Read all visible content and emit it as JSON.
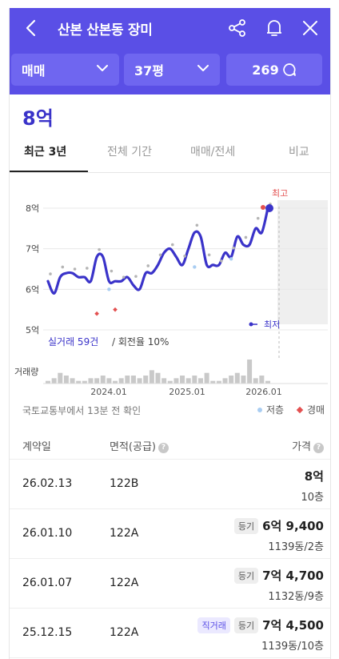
{
  "header": {
    "title": "산본 산본동 장미",
    "filter_trade": "매매",
    "filter_size": "37평",
    "comment_count": "269",
    "bg_color": "#5a4fe6"
  },
  "summary": {
    "price": "8억"
  },
  "tabs": [
    {
      "label": "최근 3년",
      "active": true
    },
    {
      "label": "전체 기간",
      "active": false
    },
    {
      "label": "매매/전세",
      "active": false
    },
    {
      "label": "비교",
      "active": false
    }
  ],
  "chart_data": {
    "type": "line",
    "y_ticks": [
      "8억",
      "7억",
      "6억",
      "5억"
    ],
    "x_ticks": [
      "2024.01",
      "2025.01",
      "2026.01"
    ],
    "ylim": [
      5,
      8
    ],
    "max_label": "최고",
    "min_label": "최저",
    "info_count": "실거래 59건",
    "info_rate": "/ 회전율 10%",
    "volume_label": "거래량",
    "series": [
      {
        "values": [
          6.2,
          5.9,
          6.3,
          6.4,
          6.4,
          6.3,
          6.3,
          6.2,
          6.8,
          6.8,
          6.2,
          6.2,
          6.2,
          6.3,
          6.1,
          6.0,
          6.4,
          6.4,
          6.6,
          6.9,
          7.0,
          6.8,
          6.6,
          7.0,
          7.4,
          7.3,
          6.6,
          6.6,
          6.6,
          6.9,
          6.8,
          7.3,
          7.1,
          7.1,
          7.5,
          7.4,
          8.0
        ]
      }
    ],
    "volume": [
      1,
      2,
      4,
      3,
      2,
      1,
      1,
      2,
      2,
      3,
      2,
      1,
      2,
      3,
      3,
      2,
      3,
      5,
      4,
      2,
      1,
      2,
      3,
      2,
      3,
      2,
      4,
      1,
      1,
      2,
      3,
      4,
      3,
      9,
      2,
      3,
      1
    ]
  },
  "source": "국토교통부에서 13분 전 확인",
  "legend": {
    "low": "저층",
    "auction": "경매"
  },
  "table": {
    "headers": {
      "date": "계약일",
      "area": "면적(공급)",
      "price": "가격"
    },
    "rows": [
      {
        "date": "26.02.13",
        "area": "122B",
        "price": "8억",
        "floor": "10층",
        "badges": []
      },
      {
        "date": "26.01.10",
        "area": "122A",
        "price": "6억 9,400",
        "floor": "1139동/2층",
        "badges": [
          "등기"
        ]
      },
      {
        "date": "26.01.07",
        "area": "122A",
        "price": "7억 4,700",
        "floor": "1132동/9층",
        "badges": [
          "등기"
        ]
      },
      {
        "date": "25.12.15",
        "area": "122A",
        "price": "7억 4,500",
        "floor": "1139동/10층",
        "badges": [
          "직거래",
          "등기"
        ]
      }
    ]
  }
}
